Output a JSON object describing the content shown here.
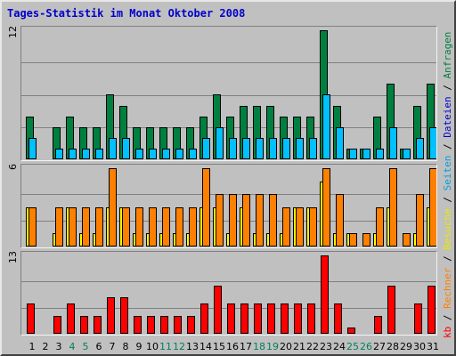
{
  "title": "Tages-Statistik im Monat Oktober 2008",
  "legend": {
    "kb": "kb",
    "rechner": "Rechner",
    "besuche": "Besuche",
    "seiten": "Seiten",
    "dateien": "Dateien",
    "anfragen": "Anfragen",
    "sep": " / "
  },
  "colors": {
    "anfragen": "#008040",
    "dateien": "#00c0ff",
    "seiten": "#00c0ff",
    "besuche": "#ffff00",
    "rechner": "#ff8000",
    "kb": "#ff0000",
    "weekday_label": "#000000",
    "weekend_label": "#00805c",
    "gridline": "#808080"
  },
  "chart_data": [
    {
      "type": "bar",
      "panel": "top",
      "ymax_label": "12",
      "ylim": [
        0,
        12
      ],
      "categories": [
        "1",
        "2",
        "3",
        "4",
        "5",
        "6",
        "7",
        "8",
        "9",
        "10",
        "11",
        "12",
        "13",
        "14",
        "15",
        "16",
        "17",
        "18",
        "19",
        "20",
        "21",
        "22",
        "23",
        "24",
        "25",
        "26",
        "27",
        "28",
        "29",
        "30",
        "31"
      ],
      "weekend": [
        4,
        5,
        11,
        12,
        18,
        19,
        25,
        26
      ],
      "grid": true,
      "series": [
        {
          "name": "Anfragen",
          "values": [
            4,
            0,
            3,
            4,
            3,
            3,
            6,
            5,
            3,
            3,
            3,
            3,
            3,
            4,
            6,
            4,
            5,
            5,
            5,
            4,
            4,
            4,
            12,
            5,
            1,
            1,
            4,
            7,
            1,
            5,
            7
          ]
        },
        {
          "name": "Dateien",
          "values": [
            2,
            0,
            1,
            1,
            1,
            1,
            2,
            2,
            1,
            1,
            1,
            1,
            1,
            2,
            3,
            2,
            2,
            2,
            2,
            2,
            2,
            2,
            6,
            3,
            1,
            1,
            1,
            3,
            1,
            2,
            3
          ]
        },
        {
          "name": "Seiten",
          "values": [
            2,
            0,
            1,
            1,
            1,
            1,
            2,
            2,
            1,
            1,
            1,
            1,
            1,
            2,
            3,
            2,
            2,
            2,
            2,
            2,
            2,
            2,
            6,
            3,
            1,
            1,
            1,
            3,
            1,
            2,
            3
          ]
        }
      ]
    },
    {
      "type": "bar",
      "panel": "middle",
      "ymax_label": "6",
      "ylim": [
        0,
        6
      ],
      "categories": [
        "1",
        "2",
        "3",
        "4",
        "5",
        "6",
        "7",
        "8",
        "9",
        "10",
        "11",
        "12",
        "13",
        "14",
        "15",
        "16",
        "17",
        "18",
        "19",
        "20",
        "21",
        "22",
        "23",
        "24",
        "25",
        "26",
        "27",
        "28",
        "29",
        "30",
        "31"
      ],
      "grid": true,
      "series": [
        {
          "name": "Besuche",
          "values": [
            3,
            0,
            1,
            3,
            1,
            1,
            3,
            3,
            1,
            1,
            1,
            1,
            1,
            3,
            3,
            1,
            3,
            1,
            1,
            1,
            3,
            3,
            5,
            1,
            1,
            0,
            1,
            3,
            0,
            1,
            3
          ]
        },
        {
          "name": "Rechner",
          "values": [
            3,
            0,
            3,
            3,
            3,
            3,
            6,
            3,
            3,
            3,
            3,
            3,
            3,
            6,
            4,
            4,
            4,
            4,
            4,
            3,
            3,
            3,
            6,
            4,
            1,
            1,
            3,
            6,
            1,
            4,
            6
          ]
        }
      ]
    },
    {
      "type": "bar",
      "panel": "bottom",
      "ymax_label": "13",
      "ylim": [
        0,
        13
      ],
      "categories": [
        "1",
        "2",
        "3",
        "4",
        "5",
        "6",
        "7",
        "8",
        "9",
        "10",
        "11",
        "12",
        "13",
        "14",
        "15",
        "16",
        "17",
        "18",
        "19",
        "20",
        "21",
        "22",
        "23",
        "24",
        "25",
        "26",
        "27",
        "28",
        "29",
        "30",
        "31"
      ],
      "grid": true,
      "series": [
        {
          "name": "kb",
          "values": [
            5,
            0,
            3,
            5,
            3,
            3,
            6,
            6,
            3,
            3,
            3,
            3,
            3,
            5,
            8,
            5,
            5,
            5,
            5,
            5,
            5,
            5,
            13,
            5,
            1,
            0,
            3,
            8,
            0,
            5,
            8
          ]
        }
      ]
    }
  ]
}
